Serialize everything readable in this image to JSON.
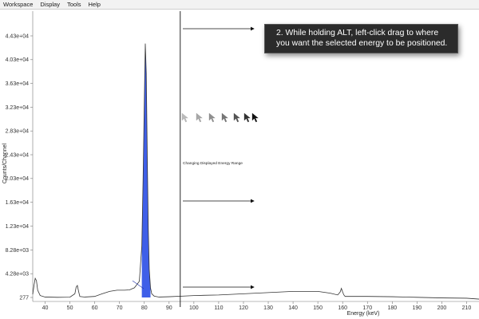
{
  "menu": {
    "items": [
      "Workspace",
      "Display",
      "Tools",
      "Help"
    ]
  },
  "instruction": {
    "line1": "2. While holding ALT, left-click drag to where",
    "line2": "you want the selected energy to be positioned."
  },
  "annotation": "Changing Displayed Energy Range",
  "colors": {
    "peak_fill": "#3f5fe8",
    "trace": "#333333",
    "tooltip_bg": "#2b2b2b"
  },
  "chart_data": {
    "type": "line",
    "xlabel": "Energy (keV)",
    "ylabel": "Counts/Channel",
    "xlim": [
      35,
      215
    ],
    "y_tick_labels": [
      "277",
      "4.28e+03",
      "8.28e+03",
      "1.23e+04",
      "1.63e+04",
      "2.03e+04",
      "2.43e+04",
      "2.83e+04",
      "3.23e+04",
      "3.63e+04",
      "4.03e+04",
      "4.43e+04"
    ],
    "y_ticks": [
      277,
      4280,
      8280,
      12300,
      16300,
      20300,
      24300,
      28300,
      32300,
      36300,
      40300,
      44300
    ],
    "x_ticks": [
      40,
      50,
      60,
      70,
      80,
      90,
      100,
      110,
      120,
      130,
      140,
      150,
      160,
      170,
      180,
      190,
      200,
      210
    ],
    "x_tick_labels": [
      "40",
      "50",
      "60",
      "70",
      "80",
      "90",
      "100",
      "110",
      "120",
      "130",
      "140",
      "150",
      "160",
      "170",
      "180",
      "190",
      "200",
      "210"
    ],
    "selected_energy_keV": 94.5,
    "highlighted_peak_range_keV": [
      79,
      82.5
    ],
    "series": [
      {
        "x": [
          35,
          35.5,
          36,
          36.5,
          37,
          38,
          40,
          45,
          50,
          52,
          52.5,
          53,
          53.5,
          54,
          56,
          60,
          63,
          66,
          69,
          72,
          74,
          76,
          78,
          79,
          79.5,
          80,
          80.4,
          80.8,
          81.2,
          81.6,
          82,
          82.5,
          83,
          84,
          86,
          90,
          95,
          100,
          110,
          120,
          130,
          140,
          150,
          155,
          158,
          159,
          159.5,
          160,
          160.5,
          161,
          163,
          170,
          180,
          190,
          200,
          210,
          215
        ],
        "y": [
          800,
          2300,
          3500,
          3100,
          1500,
          600,
          350,
          300,
          330,
          900,
          2000,
          2300,
          1300,
          450,
          350,
          450,
          900,
          1300,
          1500,
          1500,
          1550,
          1900,
          3000,
          9000,
          20000,
          33000,
          43000,
          38000,
          24000,
          12000,
          5000,
          1900,
          900,
          500,
          350,
          400,
          500,
          600,
          700,
          900,
          1100,
          1300,
          1300,
          1000,
          700,
          1200,
          1800,
          1200,
          700,
          450,
          450,
          450,
          400,
          300,
          200,
          150,
          0
        ]
      }
    ]
  }
}
